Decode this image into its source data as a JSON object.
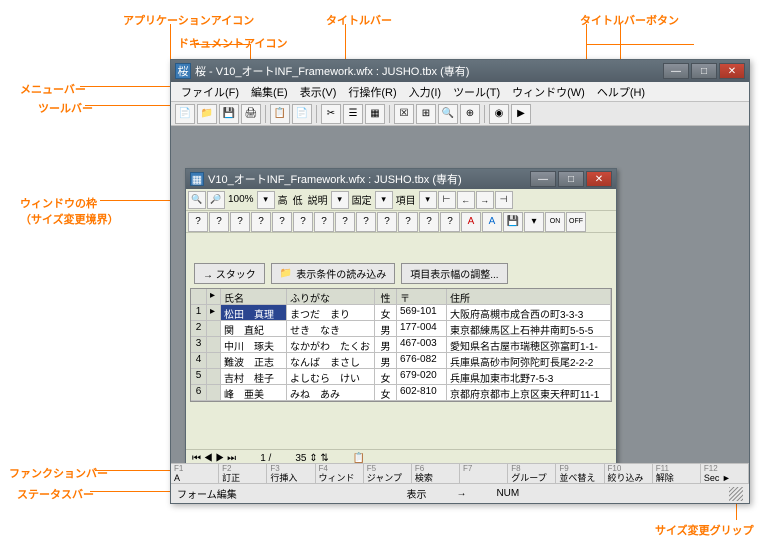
{
  "callouts": {
    "app_icon": "アプリケーションアイコン",
    "doc_icon": "ドキュメントアイコン",
    "titlebar": "タイトルバー",
    "titlebar_btns": "タイトルバーボタン",
    "menubar": "メニューバー",
    "toolbar": "ツールバー",
    "window_border": "ウィンドウの枠\n（サイズ変更境界）",
    "funcbar": "ファンクションバー",
    "statusbar": "ステータスバー",
    "size_grip": "サイズ変更グリップ"
  },
  "outer": {
    "title": "桜 - V10_オートINF_Framework.wfx : JUSHO.tbx (専有)",
    "menu": [
      "ファイル(F)",
      "編集(E)",
      "表示(V)",
      "行操作(R)",
      "入力(I)",
      "ツール(T)",
      "ウィンドウ(W)",
      "ヘルプ(H)"
    ]
  },
  "inner": {
    "title": "V10_オートINF_Framework.wfx : JUSHO.tbx (専有)",
    "zoom": "100%",
    "tbar_labels": [
      "高",
      "低",
      "説明",
      "固定",
      "項目"
    ],
    "mid": {
      "stack": "→ スタック",
      "load": "表示条件の読み込み",
      "adjust": "項目表示幅の調整..."
    },
    "cols": [
      "",
      "",
      "氏名",
      "ふりがな",
      "性",
      "〒",
      "住所"
    ],
    "rows": [
      {
        "n": "1",
        "name": "松田　真理",
        "furi": "まつだ　まり",
        "sex": "女",
        "zip": "569-101",
        "addr": "大阪府高槻市成合西の町3-3-3"
      },
      {
        "n": "2",
        "name": "関　直紀",
        "furi": "せき　なき",
        "sex": "男",
        "zip": "177-004",
        "addr": "東京都練馬区上石神井南町5-5-5"
      },
      {
        "n": "3",
        "name": "中川　琢夫",
        "furi": "なかがわ　たくお",
        "sex": "男",
        "zip": "467-003",
        "addr": "愛知県名古屋市瑞穂区弥富町1-1-"
      },
      {
        "n": "4",
        "name": "難波　正志",
        "furi": "なんば　まさし",
        "sex": "男",
        "zip": "676-082",
        "addr": "兵庫県高砂市阿弥陀町長尾2-2-2"
      },
      {
        "n": "5",
        "name": "吉村　桂子",
        "furi": "よしむら　けい",
        "sex": "女",
        "zip": "679-020",
        "addr": "兵庫県加東市北野7-5-3"
      },
      {
        "n": "6",
        "name": "峰　亜美",
        "furi": "みね　あみ",
        "sex": "女",
        "zip": "602-810",
        "addr": "京都府京都市上京区東天秤町11-1"
      }
    ],
    "status": {
      "row": "1 /",
      "total": "35"
    }
  },
  "func": [
    {
      "k": "F1",
      "t": "A"
    },
    {
      "k": "F2",
      "t": "訂正"
    },
    {
      "k": "F3",
      "t": "行挿入"
    },
    {
      "k": "F4",
      "t": "ウィンドウ替"
    },
    {
      "k": "F5",
      "t": "ジャンプ"
    },
    {
      "k": "F6",
      "t": "検索"
    },
    {
      "k": "F7",
      "t": ""
    },
    {
      "k": "F8",
      "t": "グループ"
    },
    {
      "k": "F9",
      "t": "並べ替え"
    },
    {
      "k": "F10",
      "t": "絞り込み"
    },
    {
      "k": "F11",
      "t": "解除"
    },
    {
      "k": "F12",
      "t": "Sec ►"
    }
  ],
  "status": {
    "mode": "フォーム編集",
    "disp": "表示",
    "arrow": "→",
    "num": "NUM"
  }
}
